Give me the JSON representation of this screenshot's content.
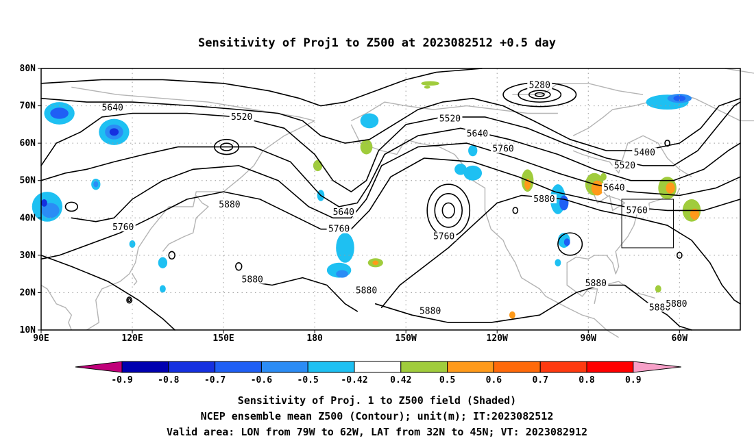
{
  "title": "Sensitivity of Proj1 to Z500 at 2023082512 +0.5 day",
  "lat_labels": [
    "80N",
    "70N",
    "60N",
    "50N",
    "40N",
    "30N",
    "20N",
    "10N"
  ],
  "lon_labels": [
    "90E",
    "120E",
    "150E",
    "180",
    "150W",
    "120W",
    "90W",
    "60W"
  ],
  "contour_labels": [
    {
      "text": "5280",
      "lon": -106.0,
      "lat": 75.5
    },
    {
      "text": "5640",
      "lon": 113.5,
      "lat": 69.5
    },
    {
      "text": "5520",
      "lon": 156.0,
      "lat": 67.0
    },
    {
      "text": "5520",
      "lon": -135.5,
      "lat": 66.5
    },
    {
      "text": "5640",
      "lon": -126.5,
      "lat": 62.5
    },
    {
      "text": "5760",
      "lon": -118.0,
      "lat": 58.5
    },
    {
      "text": "5400",
      "lon": -71.5,
      "lat": 57.5
    },
    {
      "text": "5520",
      "lon": -78.0,
      "lat": 54.0
    },
    {
      "text": "5640",
      "lon": -81.5,
      "lat": 48.0
    },
    {
      "text": "5880",
      "lon": 152.0,
      "lat": 43.5
    },
    {
      "text": "5880",
      "lon": -104.5,
      "lat": 45.0
    },
    {
      "text": "5760",
      "lon": -74.0,
      "lat": 42.0
    },
    {
      "text": "5640",
      "lon": -170.5,
      "lat": 41.5
    },
    {
      "text": "5760",
      "lon": -172.0,
      "lat": 37.0
    },
    {
      "text": "5760",
      "lon": -137.5,
      "lat": 35.0
    },
    {
      "text": "5760",
      "lon": 117.0,
      "lat": 37.5
    },
    {
      "text": "5880",
      "lon": 159.5,
      "lat": 23.5
    },
    {
      "text": "5880",
      "lon": -163.0,
      "lat": 20.5
    },
    {
      "text": "5880",
      "lon": -87.5,
      "lat": 22.5
    },
    {
      "text": "5880",
      "lon": -142.0,
      "lat": 15.0
    },
    {
      "text": "5880",
      "lon": -66.5,
      "lat": 16.0
    },
    {
      "text": "5880",
      "lon": -61.0,
      "lat": 17.0
    }
  ],
  "colorbar": {
    "labels": [
      "-0.9",
      "-0.8",
      "-0.7",
      "-0.6",
      "-0.5",
      "-0.42",
      "0.42",
      "0.5",
      "0.6",
      "0.7",
      "0.8",
      "0.9"
    ],
    "colors": [
      "#0000b0",
      "#1530e0",
      "#1f5ff5",
      "#2b8cf5",
      "#1ec0f2",
      "#ffffff",
      "#a0cc3c",
      "#ff9a1a",
      "#ff6a0a",
      "#ff3a10",
      "#ff0000"
    ],
    "low_color": "#c0007a",
    "high_color": "#f7a0c8"
  },
  "captions": [
    "Sensitivity of Proj. 1 to Z500 field (Shaded)",
    "NCEP ensemble mean Z500 (Contour); unit(m); IT:2023082512",
    "Valid area: LON from 79W to 62W, LAT from 32N to 45N; VT: 2023082912"
  ],
  "valid_area": {
    "lon_min": -79,
    "lon_max": -62,
    "lat_min": 32,
    "lat_max": 45
  },
  "colors": {
    "contour": "#000000",
    "coast": "#b4b4b4",
    "grid": "#9a9a9a"
  }
}
